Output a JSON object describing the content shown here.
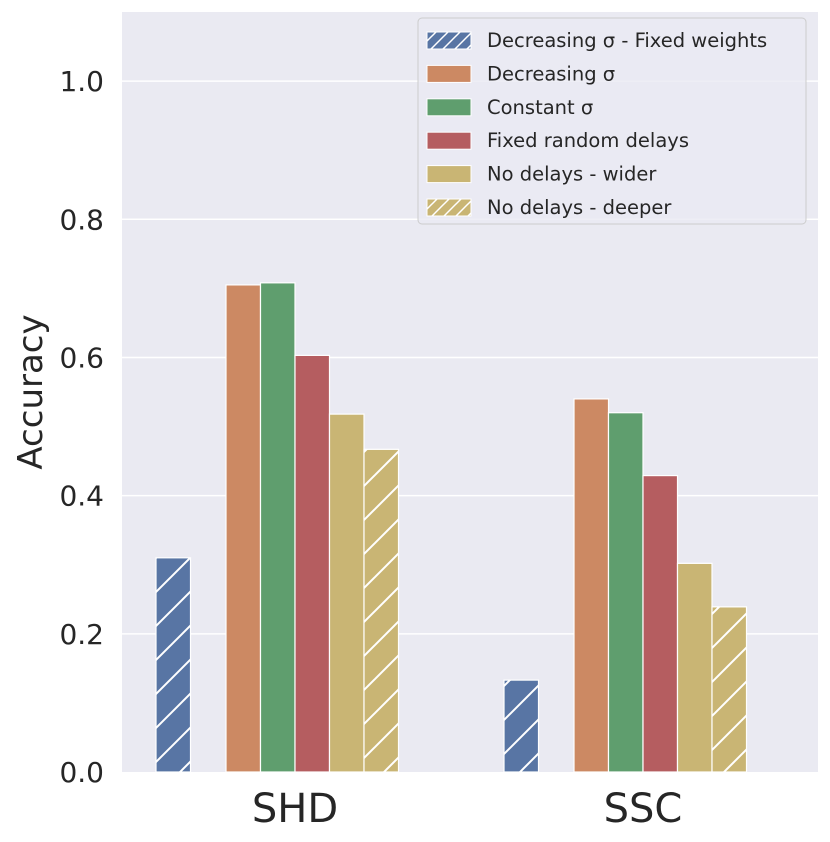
{
  "chart_data": {
    "type": "bar",
    "title": "",
    "xlabel": "",
    "ylabel": "Accuracy",
    "ylim": [
      0,
      1.1
    ],
    "yticks": [
      "0.0",
      "0.2",
      "0.4",
      "0.6",
      "0.8",
      "1.0"
    ],
    "ytick_values": [
      0,
      0.2,
      0.4,
      0.6,
      0.8,
      1.0
    ],
    "categories": [
      "SHD",
      "SSC"
    ],
    "legend_position": "top-right",
    "grid": true,
    "colors": {
      "background": "#eaeaf2",
      "grid": "#ffffff",
      "blue": "#5875a4",
      "orange": "#cc8963",
      "green": "#5f9e6e",
      "red": "#b55d60",
      "yellow": "#c9b574"
    },
    "series": [
      {
        "name": "Decreasing σ - Fixed weights",
        "values": [
          0.31,
          0.133
        ],
        "color": "#5875a4",
        "hatch": true
      },
      {
        "name": "Decreasing σ",
        "values": [
          0.705,
          0.54
        ],
        "color": "#cc8963",
        "hatch": false
      },
      {
        "name": "Constant σ",
        "values": [
          0.708,
          0.52
        ],
        "color": "#5f9e6e",
        "hatch": false
      },
      {
        "name": "Fixed random delays",
        "values": [
          0.603,
          0.429
        ],
        "color": "#b55d60",
        "hatch": false
      },
      {
        "name": "No delays - wider",
        "values": [
          0.518,
          0.302
        ],
        "color": "#c9b574",
        "hatch": false
      },
      {
        "name": "No delays - deeper",
        "values": [
          0.467,
          0.239
        ],
        "color": "#c9b574",
        "hatch": true
      }
    ]
  }
}
